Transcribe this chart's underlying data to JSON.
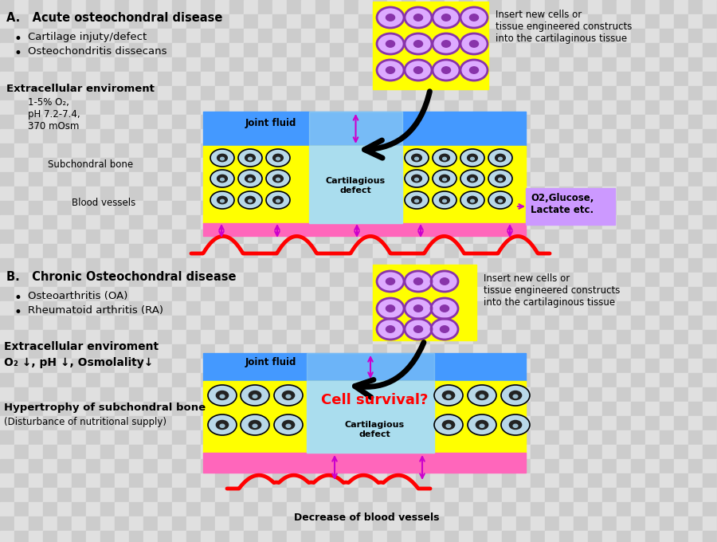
{
  "blue_fluid": "#4499ff",
  "yellow_cartilage": "#ffff00",
  "light_blue_defect": "#aaddee",
  "pink_bone": "#ff66bb",
  "red_vessel": "#ff0000",
  "purple_arrow": "#cc00cc",
  "cell_outer": "#aaccdd",
  "purple_cell_fill": "#cc99ee",
  "purple_cell_border": "#8833aa",
  "purple_cell_center": "#8833aa",
  "o2_box_color": "#cc99ff",
  "title_a": "A.   Acute osteochondral disease",
  "bullet_a1": "Cartilage injuty/defect",
  "bullet_a2": "Osteochondritis dissecans",
  "env_a_title": "Extracellular enviroment",
  "subchondral_a": "Subchondral bone",
  "blood_a": "Blood vessels",
  "joint_fluid": "Joint fluid",
  "cartilagious": "Cartilagious\ndefect",
  "o2_label": "O2,Glucose,\nLactate etc.",
  "insert_text_a": "Insert new cells or\ntissue engineered constructs\ninto the cartilaginous tissue",
  "title_b": "B.   Chronic Osteochondral disease",
  "bullet_b1": "Osteoarthritis (OA)",
  "bullet_b2": "Rheumatoid arthritis (RA)",
  "env_b_title": "Extracellular enviroment",
  "env_b_sub": "O₂ ↓, pH ↓, Osmolality↓",
  "hypertrophy": "Hypertrophy of subchondral bone",
  "disturbance": "(Disturbance of nutritional supply)",
  "cell_survival": "Cell survival?",
  "insert_text_b": "Insert new cells or\ntissue engineered constructs\ninto the cartilaginous tissue",
  "decrease_vessels": "Decrease of blood vessels"
}
